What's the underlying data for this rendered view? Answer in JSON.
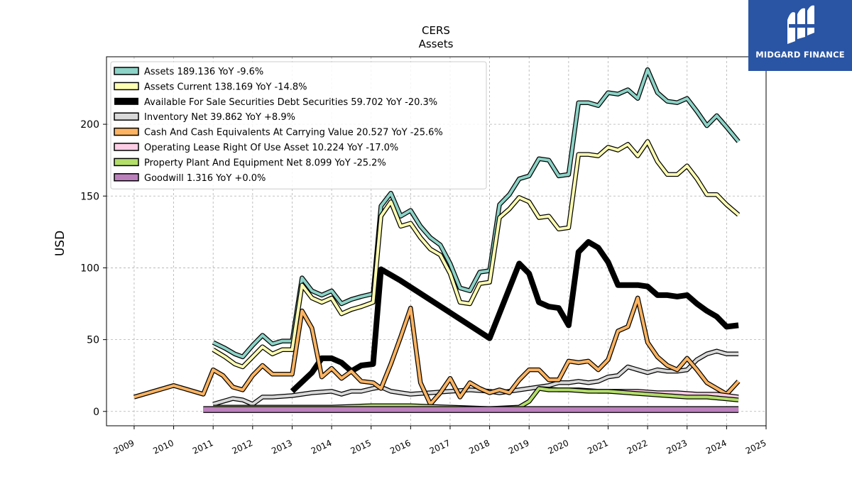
{
  "chart_data": {
    "type": "line",
    "title": "CERS",
    "subtitle": "Assets",
    "ylabel": "USD",
    "xlabel": "",
    "xlim": [
      2008.3,
      2025.0
    ],
    "ylim": [
      -10,
      247
    ],
    "x_ticks": [
      "2009",
      "2010",
      "2011",
      "2012",
      "2013",
      "2014",
      "2015",
      "2016",
      "2017",
      "2018",
      "2019",
      "2020",
      "2021",
      "2022",
      "2023",
      "2024",
      "2025"
    ],
    "y_ticks": [
      "0",
      "50",
      "100",
      "150",
      "200"
    ],
    "grid": true,
    "legend_position": "top-left",
    "series": [
      {
        "name": "Assets  189.136 YoY -9.6%",
        "color": "#8dd3c7",
        "width": 4,
        "points": [
          [
            2011.0,
            48
          ],
          [
            2011.3,
            44
          ],
          [
            2011.55,
            40
          ],
          [
            2011.75,
            38
          ],
          [
            2012.0,
            46
          ],
          [
            2012.25,
            53
          ],
          [
            2012.5,
            47
          ],
          [
            2012.75,
            49
          ],
          [
            2013.0,
            49
          ],
          [
            2013.25,
            93
          ],
          [
            2013.5,
            84
          ],
          [
            2013.75,
            81
          ],
          [
            2014.0,
            84
          ],
          [
            2014.25,
            75
          ],
          [
            2014.5,
            78
          ],
          [
            2014.75,
            80
          ],
          [
            2015.05,
            82
          ],
          [
            2015.25,
            143
          ],
          [
            2015.5,
            152
          ],
          [
            2015.75,
            136
          ],
          [
            2016.0,
            140
          ],
          [
            2016.25,
            129
          ],
          [
            2016.5,
            121
          ],
          [
            2016.75,
            116
          ],
          [
            2017.0,
            103
          ],
          [
            2017.25,
            86
          ],
          [
            2017.5,
            84
          ],
          [
            2017.75,
            97
          ],
          [
            2018.0,
            98
          ],
          [
            2018.25,
            144
          ],
          [
            2018.5,
            151
          ],
          [
            2018.75,
            162
          ],
          [
            2019.0,
            164
          ],
          [
            2019.25,
            176
          ],
          [
            2019.5,
            175
          ],
          [
            2019.75,
            164
          ],
          [
            2020.0,
            165
          ],
          [
            2020.25,
            215
          ],
          [
            2020.5,
            215
          ],
          [
            2020.75,
            213
          ],
          [
            2021.0,
            222
          ],
          [
            2021.25,
            221
          ],
          [
            2021.5,
            224
          ],
          [
            2021.75,
            218
          ],
          [
            2022.0,
            238
          ],
          [
            2022.25,
            222
          ],
          [
            2022.5,
            216
          ],
          [
            2022.75,
            215
          ],
          [
            2023.0,
            218
          ],
          [
            2023.25,
            209
          ],
          [
            2023.5,
            199
          ],
          [
            2023.75,
            206
          ],
          [
            2024.0,
            198
          ],
          [
            2024.3,
            188
          ]
        ]
      },
      {
        "name": "Assets Current  138.169 YoY -14.8%",
        "color": "#ffffb3",
        "width": 4,
        "points": [
          [
            2011.0,
            43
          ],
          [
            2011.3,
            38
          ],
          [
            2011.55,
            33
          ],
          [
            2011.75,
            31
          ],
          [
            2012.0,
            38
          ],
          [
            2012.25,
            45
          ],
          [
            2012.5,
            40
          ],
          [
            2012.75,
            43
          ],
          [
            2013.0,
            43
          ],
          [
            2013.25,
            88
          ],
          [
            2013.5,
            79
          ],
          [
            2013.75,
            76
          ],
          [
            2014.0,
            79
          ],
          [
            2014.25,
            68
          ],
          [
            2014.5,
            71
          ],
          [
            2014.75,
            73
          ],
          [
            2015.05,
            76
          ],
          [
            2015.25,
            136
          ],
          [
            2015.5,
            146
          ],
          [
            2015.75,
            129
          ],
          [
            2016.0,
            131
          ],
          [
            2016.25,
            121
          ],
          [
            2016.5,
            113
          ],
          [
            2016.75,
            109
          ],
          [
            2017.0,
            96
          ],
          [
            2017.25,
            76
          ],
          [
            2017.5,
            75
          ],
          [
            2017.75,
            89
          ],
          [
            2018.0,
            90
          ],
          [
            2018.25,
            135
          ],
          [
            2018.5,
            141
          ],
          [
            2018.75,
            149
          ],
          [
            2019.0,
            146
          ],
          [
            2019.25,
            135
          ],
          [
            2019.5,
            136
          ],
          [
            2019.75,
            127
          ],
          [
            2020.0,
            128
          ],
          [
            2020.25,
            179
          ],
          [
            2020.5,
            179
          ],
          [
            2020.75,
            178
          ],
          [
            2021.0,
            184
          ],
          [
            2021.25,
            182
          ],
          [
            2021.5,
            186
          ],
          [
            2021.75,
            178
          ],
          [
            2022.0,
            188
          ],
          [
            2022.25,
            174
          ],
          [
            2022.5,
            165
          ],
          [
            2022.75,
            165
          ],
          [
            2023.0,
            171
          ],
          [
            2023.25,
            162
          ],
          [
            2023.5,
            151
          ],
          [
            2023.75,
            151
          ],
          [
            2024.0,
            144
          ],
          [
            2024.3,
            137
          ]
        ]
      },
      {
        "name": "Available For Sale Securities Debt Securities  59.702 YoY -20.3%",
        "color": "#000000",
        "width": 7,
        "points": [
          [
            2013.0,
            14
          ],
          [
            2013.5,
            27
          ],
          [
            2013.75,
            37
          ],
          [
            2014.0,
            37
          ],
          [
            2014.25,
            34
          ],
          [
            2014.5,
            28
          ],
          [
            2014.75,
            32
          ],
          [
            2015.05,
            33
          ],
          [
            2015.25,
            99
          ],
          [
            2015.5,
            95
          ],
          [
            2015.75,
            91
          ],
          [
            2018.0,
            51
          ],
          [
            2018.75,
            103
          ],
          [
            2019.0,
            96
          ],
          [
            2019.25,
            76
          ],
          [
            2019.5,
            73
          ],
          [
            2019.75,
            72
          ],
          [
            2020.0,
            60
          ],
          [
            2020.25,
            111
          ],
          [
            2020.5,
            118
          ],
          [
            2020.75,
            114
          ],
          [
            2021.0,
            104
          ],
          [
            2021.25,
            88
          ],
          [
            2021.5,
            88
          ],
          [
            2021.75,
            88
          ],
          [
            2022.0,
            87
          ],
          [
            2022.25,
            81
          ],
          [
            2022.5,
            81
          ],
          [
            2022.75,
            80
          ],
          [
            2023.0,
            81
          ],
          [
            2023.25,
            75
          ],
          [
            2023.5,
            70
          ],
          [
            2023.75,
            66
          ],
          [
            2024.0,
            59
          ],
          [
            2024.3,
            60
          ]
        ]
      },
      {
        "name": "Inventory Net  39.862 YoY +8.9%",
        "color": "#d9d9d9",
        "width": 4,
        "points": [
          [
            2011.0,
            5
          ],
          [
            2011.5,
            9
          ],
          [
            2011.75,
            8
          ],
          [
            2012.0,
            5
          ],
          [
            2012.25,
            10
          ],
          [
            2012.5,
            10
          ],
          [
            2013.0,
            11
          ],
          [
            2013.25,
            12
          ],
          [
            2013.5,
            13
          ],
          [
            2014.0,
            14
          ],
          [
            2014.25,
            12
          ],
          [
            2014.5,
            14
          ],
          [
            2014.75,
            14
          ],
          [
            2015.05,
            16
          ],
          [
            2015.25,
            17
          ],
          [
            2015.5,
            14
          ],
          [
            2015.75,
            13
          ],
          [
            2016.0,
            12
          ],
          [
            2016.5,
            13
          ],
          [
            2017.0,
            14
          ],
          [
            2017.5,
            15
          ],
          [
            2018.0,
            14
          ],
          [
            2018.25,
            13
          ],
          [
            2018.5,
            14
          ],
          [
            2019.0,
            16
          ],
          [
            2019.25,
            17
          ],
          [
            2019.5,
            18
          ],
          [
            2019.75,
            20
          ],
          [
            2020.0,
            20
          ],
          [
            2020.25,
            21
          ],
          [
            2020.5,
            20
          ],
          [
            2020.75,
            21
          ],
          [
            2021.0,
            24
          ],
          [
            2021.25,
            25
          ],
          [
            2021.5,
            31
          ],
          [
            2021.75,
            29
          ],
          [
            2022.0,
            27
          ],
          [
            2022.25,
            29
          ],
          [
            2022.5,
            28
          ],
          [
            2022.75,
            28
          ],
          [
            2023.0,
            29
          ],
          [
            2023.25,
            36
          ],
          [
            2023.5,
            40
          ],
          [
            2023.75,
            42
          ],
          [
            2024.0,
            40
          ],
          [
            2024.3,
            40
          ]
        ]
      },
      {
        "name": "Cash And Cash Equivalents At Carrying Value  20.527 YoY -25.6%",
        "color": "#fdb462",
        "width": 4,
        "points": [
          [
            2009.0,
            10
          ],
          [
            2010.0,
            18
          ],
          [
            2010.75,
            12
          ],
          [
            2011.0,
            29
          ],
          [
            2011.25,
            25
          ],
          [
            2011.5,
            17
          ],
          [
            2011.75,
            15
          ],
          [
            2012.0,
            25
          ],
          [
            2012.25,
            32
          ],
          [
            2012.5,
            26
          ],
          [
            2013.0,
            26
          ],
          [
            2013.25,
            70
          ],
          [
            2013.5,
            58
          ],
          [
            2013.75,
            24
          ],
          [
            2014.0,
            30
          ],
          [
            2014.25,
            23
          ],
          [
            2014.5,
            28
          ],
          [
            2014.75,
            21
          ],
          [
            2015.05,
            20
          ],
          [
            2015.25,
            16
          ],
          [
            2015.5,
            33
          ],
          [
            2015.75,
            52
          ],
          [
            2016.0,
            72
          ],
          [
            2016.25,
            20
          ],
          [
            2016.5,
            5
          ],
          [
            2016.75,
            13
          ],
          [
            2017.0,
            23
          ],
          [
            2017.25,
            10
          ],
          [
            2017.5,
            20
          ],
          [
            2017.75,
            16
          ],
          [
            2018.0,
            13
          ],
          [
            2018.25,
            15
          ],
          [
            2018.5,
            13
          ],
          [
            2018.75,
            22
          ],
          [
            2019.0,
            29
          ],
          [
            2019.25,
            29
          ],
          [
            2019.5,
            22
          ],
          [
            2019.75,
            22
          ],
          [
            2020.0,
            35
          ],
          [
            2020.25,
            34
          ],
          [
            2020.5,
            35
          ],
          [
            2020.75,
            29
          ],
          [
            2021.0,
            36
          ],
          [
            2021.25,
            56
          ],
          [
            2021.5,
            59
          ],
          [
            2021.75,
            79
          ],
          [
            2022.0,
            48
          ],
          [
            2022.25,
            38
          ],
          [
            2022.5,
            32
          ],
          [
            2022.75,
            29
          ],
          [
            2023.0,
            37
          ],
          [
            2023.25,
            29
          ],
          [
            2023.5,
            20
          ],
          [
            2023.75,
            16
          ],
          [
            2024.0,
            12
          ],
          [
            2024.3,
            21
          ]
        ]
      },
      {
        "name": "Operating Lease Right Of Use Asset  10.224 YoY -17.0%",
        "color": "#fccde5",
        "width": 4,
        "points": [
          [
            2019.25,
            16
          ],
          [
            2019.75,
            15
          ],
          [
            2020.25,
            15
          ],
          [
            2020.75,
            14
          ],
          [
            2021.25,
            14
          ],
          [
            2021.75,
            14
          ],
          [
            2022.25,
            13
          ],
          [
            2022.75,
            13
          ],
          [
            2023.25,
            12
          ],
          [
            2023.75,
            12
          ],
          [
            2024.3,
            10
          ]
        ]
      },
      {
        "name": "Property Plant And Equipment Net  8.099 YoY -25.2%",
        "color": "#b3de69",
        "width": 4,
        "points": [
          [
            2011.0,
            3
          ],
          [
            2014.0,
            3
          ],
          [
            2015.0,
            4
          ],
          [
            2016.0,
            4
          ],
          [
            2017.0,
            3
          ],
          [
            2018.0,
            2
          ],
          [
            2018.75,
            3
          ],
          [
            2019.0,
            7
          ],
          [
            2019.25,
            16
          ],
          [
            2019.5,
            15
          ],
          [
            2020.0,
            15
          ],
          [
            2020.5,
            14
          ],
          [
            2021.0,
            14
          ],
          [
            2021.5,
            13
          ],
          [
            2022.0,
            12
          ],
          [
            2022.5,
            11
          ],
          [
            2023.0,
            10
          ],
          [
            2023.5,
            10
          ],
          [
            2024.3,
            8
          ]
        ]
      },
      {
        "name": "Goodwill  1.316 YoY +0.0%",
        "color": "#bc80bd",
        "width": 7,
        "points": [
          [
            2010.75,
            1.3
          ],
          [
            2024.3,
            1.3
          ]
        ]
      }
    ]
  },
  "logo": {
    "text": "MIDGARD FINANCE",
    "bg": "#2a55a4"
  }
}
